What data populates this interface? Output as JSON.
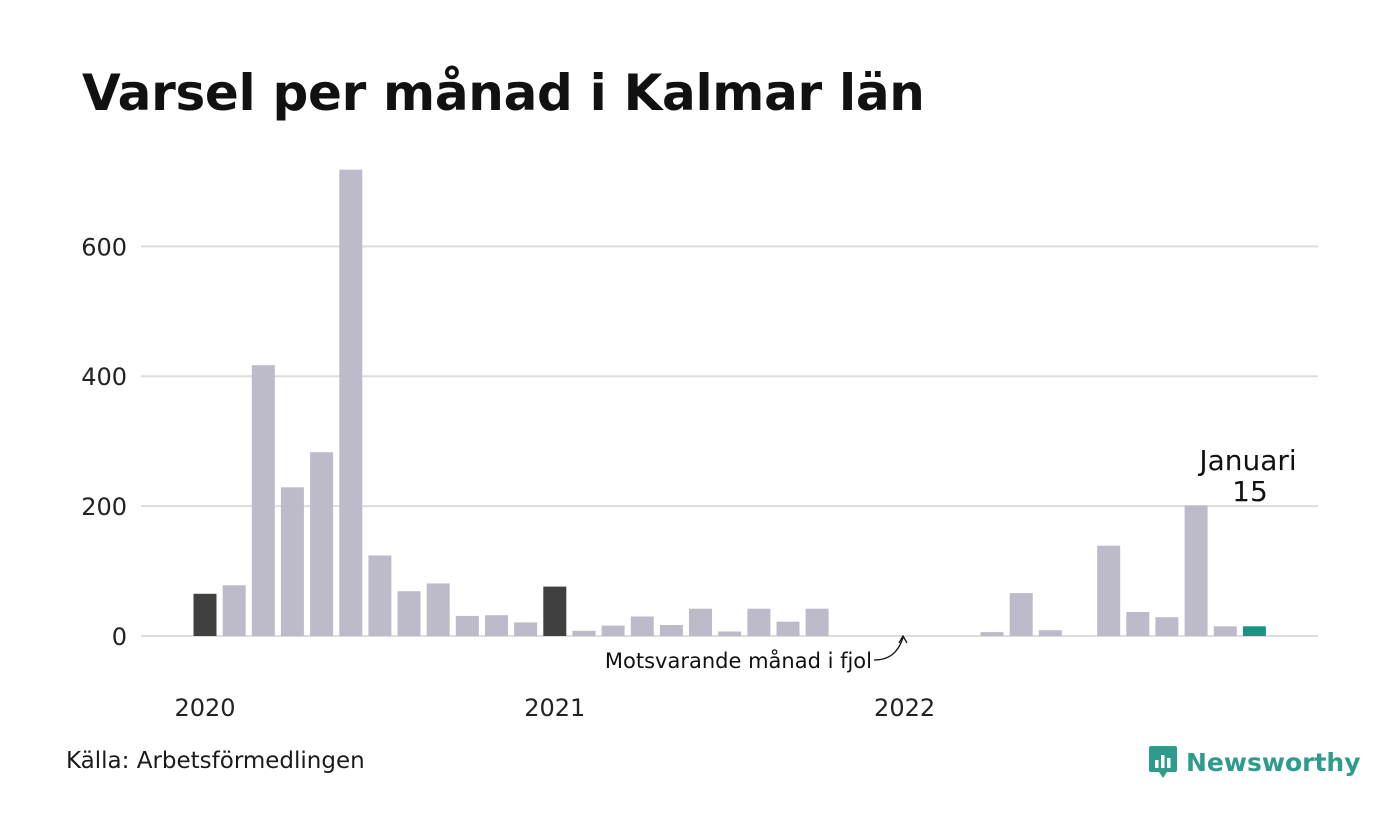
{
  "title": "Varsel per månad i Kalmar län",
  "source": "Källa: Arbetsförmedlingen",
  "brand": {
    "name": "Newsworthy",
    "icon": "newsworthy-logo-icon",
    "color": "#2f9b8c"
  },
  "annotation": "Motsvarande månad i fjol",
  "callout": {
    "month": "Januari",
    "value": "15"
  },
  "colors": {
    "bar": "#bdbbc9",
    "previous_year": "#404040",
    "current": "#1a9385",
    "grid": "#dddddd"
  },
  "chart_data": {
    "type": "bar",
    "title": "Varsel per månad i Kalmar län",
    "xlabel": "",
    "ylabel": "",
    "ylim": [
      0,
      720
    ],
    "yticks": [
      0,
      200,
      400,
      600
    ],
    "grid": true,
    "x_tick_labels": [
      {
        "label": "2020",
        "index": 0
      },
      {
        "label": "2021",
        "index": 12
      },
      {
        "label": "2022",
        "index": 24
      }
    ],
    "categories": [
      "2020-01",
      "2020-02",
      "2020-03",
      "2020-04",
      "2020-05",
      "2020-06",
      "2020-07",
      "2020-08",
      "2020-09",
      "2020-10",
      "2020-11",
      "2020-12",
      "2021-01",
      "2021-02",
      "2021-03",
      "2021-04",
      "2021-05",
      "2021-06",
      "2021-07",
      "2021-08",
      "2021-09",
      "2021-10",
      "2021-11",
      "2021-12",
      "2022-01",
      "2022-02",
      "2022-03",
      "2022-04",
      "2022-05",
      "2022-06",
      "2022-07",
      "2022-08",
      "2022-09",
      "2022-10",
      "2022-11",
      "2022-12",
      "2023-01"
    ],
    "values": [
      65,
      78,
      417,
      229,
      283,
      718,
      124,
      69,
      81,
      31,
      32,
      21,
      76,
      8,
      16,
      30,
      17,
      42,
      7,
      42,
      22,
      42,
      0,
      0,
      0,
      0,
      0,
      6,
      66,
      9,
      0,
      139,
      37,
      29,
      201,
      15,
      15
    ],
    "highlight": {
      "previous_year": [
        0,
        12
      ],
      "current": 36
    }
  }
}
